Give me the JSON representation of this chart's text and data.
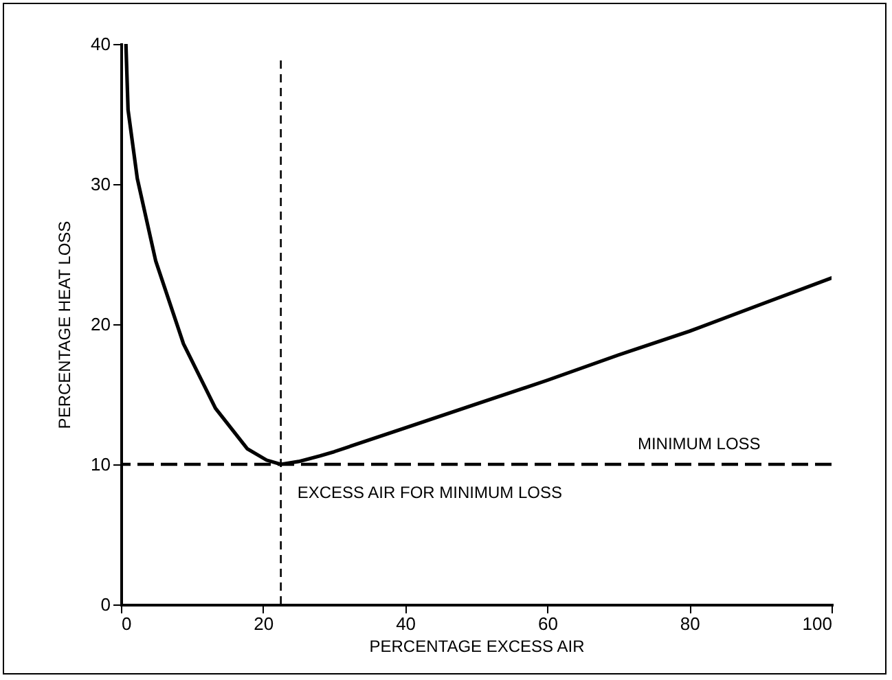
{
  "chart_data": {
    "type": "line",
    "xlabel": "PERCENTAGE EXCESS AIR",
    "ylabel": "PERCENTAGE HEAT LOSS",
    "x": [
      0.7,
      1,
      2.3,
      4.9,
      8.8,
      13.3,
      17.8,
      20.5,
      22.5,
      25,
      28,
      30,
      40,
      50,
      60,
      70,
      80,
      90,
      100
    ],
    "series": [
      {
        "color": "#000000",
        "values": [
          40,
          35.3,
          30.4,
          24.5,
          18.6,
          14,
          11.1,
          10.3,
          10,
          10.2,
          10.6,
          10.9,
          12.6,
          14.3,
          16,
          17.8,
          19.5,
          21.4,
          23.3
        ]
      }
    ],
    "xlim": [
      0,
      100
    ],
    "xticks": [
      0,
      20,
      40,
      60,
      80,
      100
    ],
    "ylim": [
      0,
      40
    ],
    "yticks": [
      0,
      10,
      20,
      30,
      40
    ],
    "grid": false,
    "marker": "none",
    "line_style": "solid",
    "ref_lines": [
      {
        "axis": "y",
        "value": 10,
        "label": "MINIMUM LOSS",
        "line_style": "dashed"
      },
      {
        "axis": "x",
        "value": 22.5,
        "label": "EXCESS AIR FOR MINIMUM LOSS",
        "line_style": "dashed"
      }
    ]
  }
}
